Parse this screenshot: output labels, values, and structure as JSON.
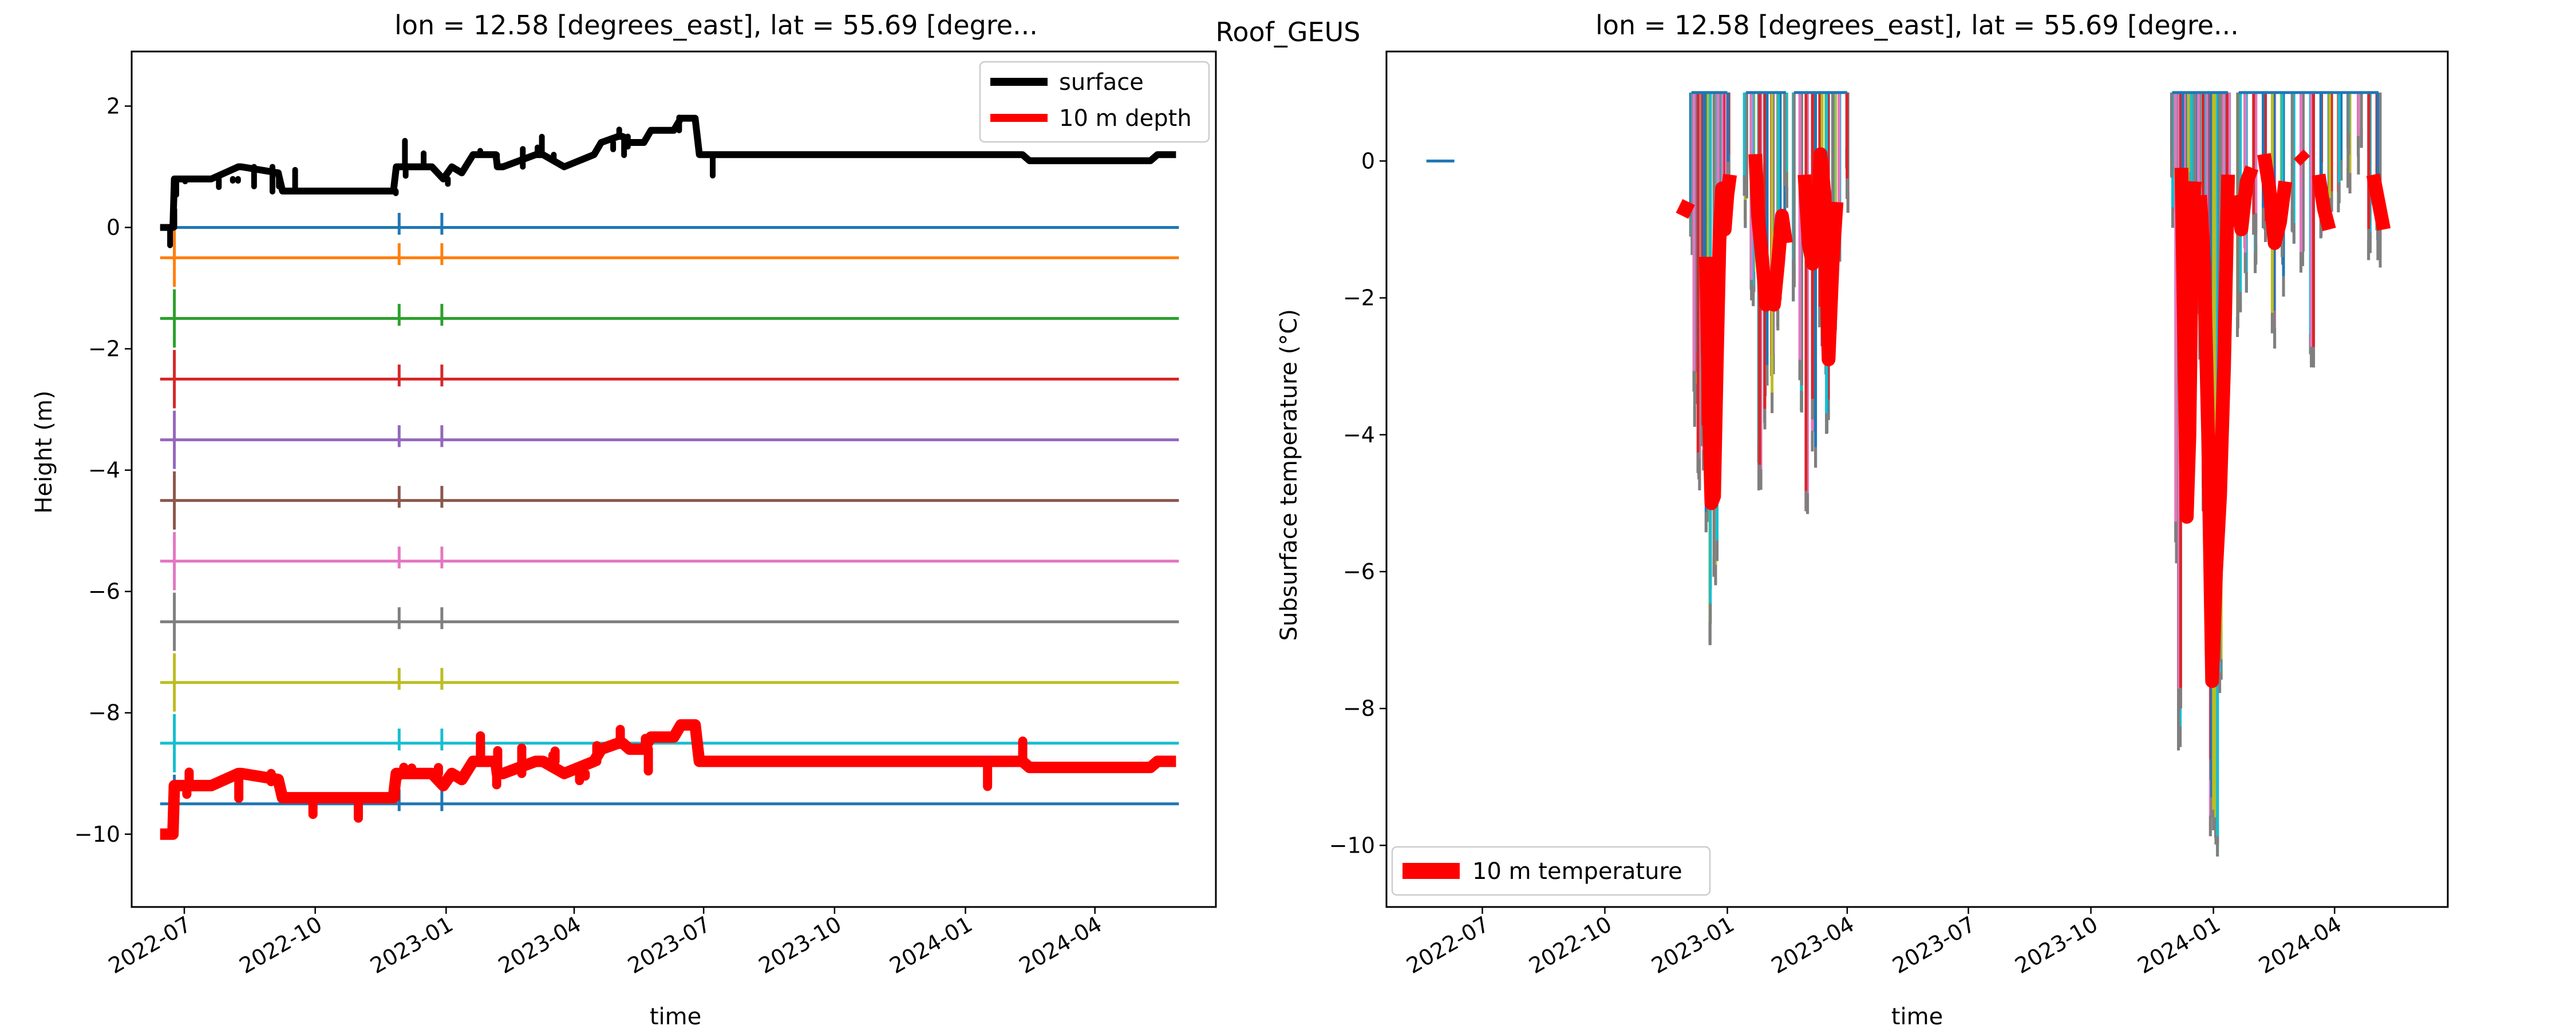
{
  "figure": {
    "suptitle": "Roof_GEUS"
  },
  "chart_data": [
    {
      "type": "line",
      "title": "lon = 12.58 [degrees_east], lat = 55.69 [degre...",
      "xlabel": "time",
      "ylabel": "Height (m)",
      "xlim": [
        "2022-05-25",
        "2024-06-25"
      ],
      "ylim": [
        -11.2,
        2.9
      ],
      "x_tick_labels": [
        "2022-07",
        "2022-10",
        "2023-01",
        "2023-04",
        "2023-07",
        "2023-10",
        "2024-01",
        "2024-04"
      ],
      "y_ticks": [
        2,
        0,
        -2,
        -4,
        -6,
        -8,
        -10
      ],
      "y_tick_labels": [
        "2",
        "0",
        "−2",
        "−4",
        "−6",
        "−8",
        "−10"
      ],
      "legend": {
        "placement": "upper right",
        "entries": [
          {
            "label": "surface",
            "color": "#000000"
          },
          {
            "label": "10 m depth",
            "color": "#ff0000"
          }
        ]
      },
      "depth_levels": [
        {
          "y": 0.0,
          "color": "#1f77b4"
        },
        {
          "y": -0.5,
          "color": "#ff7f0e"
        },
        {
          "y": -1.5,
          "color": "#2ca02c"
        },
        {
          "y": -2.5,
          "color": "#d62728"
        },
        {
          "y": -3.5,
          "color": "#9467bd"
        },
        {
          "y": -4.5,
          "color": "#8c564b"
        },
        {
          "y": -5.5,
          "color": "#e377c2"
        },
        {
          "y": -6.5,
          "color": "#7f7f7f"
        },
        {
          "y": -7.5,
          "color": "#bcbd22"
        },
        {
          "y": -8.5,
          "color": "#17becf"
        },
        {
          "y": -9.5,
          "color": "#1f77b4"
        }
      ],
      "depth_line_start": "2022-06-14",
      "depth_line_end": "2024-05-30",
      "spike_dates": [
        "2022-06-24",
        "2022-11-29",
        "2022-12-29"
      ],
      "series": [
        {
          "name": "surface",
          "color": "#000000",
          "x": [
            "2022-06-14",
            "2022-06-23",
            "2022-06-24",
            "2022-06-26",
            "2022-07-20",
            "2022-08-08",
            "2022-08-10",
            "2022-09-05",
            "2022-09-08",
            "2022-09-12",
            "2022-11-25",
            "2022-11-27",
            "2022-11-30",
            "2022-12-05",
            "2022-12-22",
            "2022-12-30",
            "2023-01-05",
            "2023-01-12",
            "2023-01-20",
            "2023-02-05",
            "2023-02-06",
            "2023-02-10",
            "2023-03-05",
            "2023-03-10",
            "2023-03-25",
            "2023-04-15",
            "2023-04-20",
            "2023-05-02",
            "2023-05-05",
            "2023-05-10",
            "2023-05-20",
            "2023-05-25",
            "2023-06-10",
            "2023-06-15",
            "2023-06-25",
            "2023-06-28",
            "2023-07-15",
            "2024-01-15",
            "2024-02-10",
            "2024-02-15",
            "2024-05-10",
            "2024-05-15",
            "2024-05-28"
          ],
          "y": [
            0.0,
            0.0,
            0.8,
            0.8,
            0.8,
            1.0,
            1.0,
            0.9,
            0.6,
            0.6,
            0.6,
            1.0,
            1.0,
            1.0,
            1.0,
            0.8,
            1.0,
            0.9,
            1.2,
            1.2,
            1.0,
            1.0,
            1.2,
            1.2,
            1.0,
            1.2,
            1.4,
            1.5,
            1.5,
            1.4,
            1.4,
            1.6,
            1.6,
            1.8,
            1.8,
            1.2,
            1.2,
            1.2,
            1.2,
            1.1,
            1.1,
            1.2,
            1.2
          ]
        },
        {
          "name": "10 m depth",
          "color": "#ff0000",
          "x": [
            "2022-06-14",
            "2022-06-23",
            "2022-06-24",
            "2022-06-26",
            "2022-07-20",
            "2022-08-08",
            "2022-08-10",
            "2022-09-05",
            "2022-09-08",
            "2022-09-12",
            "2022-11-25",
            "2022-11-27",
            "2022-11-30",
            "2022-12-05",
            "2022-12-22",
            "2022-12-30",
            "2023-01-05",
            "2023-01-12",
            "2023-01-20",
            "2023-02-05",
            "2023-02-06",
            "2023-02-10",
            "2023-03-05",
            "2023-03-10",
            "2023-03-25",
            "2023-04-15",
            "2023-04-20",
            "2023-05-02",
            "2023-05-05",
            "2023-05-10",
            "2023-05-20",
            "2023-05-25",
            "2023-06-10",
            "2023-06-15",
            "2023-06-25",
            "2023-06-28",
            "2023-07-15",
            "2024-01-15",
            "2024-02-10",
            "2024-02-15",
            "2024-05-10",
            "2024-05-15",
            "2024-05-28"
          ],
          "y": [
            -10.0,
            -10.0,
            -9.2,
            -9.2,
            -9.2,
            -9.0,
            -9.0,
            -9.1,
            -9.4,
            -9.4,
            -9.4,
            -9.0,
            -9.0,
            -9.0,
            -9.0,
            -9.2,
            -9.0,
            -9.1,
            -8.8,
            -8.8,
            -9.0,
            -9.0,
            -8.8,
            -8.8,
            -9.0,
            -8.8,
            -8.6,
            -8.5,
            -8.5,
            -8.6,
            -8.6,
            -8.4,
            -8.4,
            -8.2,
            -8.2,
            -8.8,
            -8.8,
            -8.8,
            -8.8,
            -8.9,
            -8.9,
            -8.8,
            -8.8
          ]
        }
      ]
    },
    {
      "type": "line",
      "title": "lon = 12.58 [degrees_east], lat = 55.69 [degre...",
      "xlabel": "time",
      "ylabel": "Subsurface temperature (°C)",
      "xlim": [
        "2022-04-20",
        "2024-06-25"
      ],
      "ylim": [
        -10.9,
        1.6
      ],
      "x_tick_labels": [
        "2022-07",
        "2022-10",
        "2023-01",
        "2023-04",
        "2023-07",
        "2023-10",
        "2024-01",
        "2024-04"
      ],
      "y_ticks": [
        0,
        -2,
        -4,
        -6,
        -8,
        -10
      ],
      "y_tick_labels": [
        "0",
        "−2",
        "−4",
        "−6",
        "−8",
        "−10"
      ],
      "legend": {
        "placement": "lower left",
        "entries": [
          {
            "label": "10 m temperature",
            "color": "#ff0000"
          }
        ]
      },
      "early_segment": {
        "x": [
          "2022-05-20",
          "2022-06-10"
        ],
        "y": 0.0,
        "color": "#1f77b4"
      },
      "depth_series_colors": [
        "#1f77b4",
        "#bcbd22",
        "#17becf",
        "#7f7f7f",
        "#e377c2",
        "#d62728"
      ],
      "warm_bursts": [
        {
          "x": [
            "2022-12-05",
            "2022-12-08",
            "2022-12-11",
            "2022-12-14",
            "2022-12-17",
            "2022-12-20",
            "2022-12-23",
            "2022-12-26",
            "2022-12-29",
            "2023-01-01"
          ],
          "ymin": [
            -1.5,
            -3.9,
            -5.0,
            -4.6,
            -5.6,
            -7.1,
            -6.2,
            -3.0,
            -1.8,
            -0.8
          ]
        },
        {
          "x": [
            "2023-01-15",
            "2023-01-20",
            "2023-01-25",
            "2023-01-30",
            "2023-02-04",
            "2023-02-09",
            "2023-02-14"
          ],
          "ymin": [
            -1.2,
            -2.3,
            -5.0,
            -4.1,
            -3.8,
            -2.5,
            -1.2
          ]
        },
        {
          "x": [
            "2023-02-20",
            "2023-02-25",
            "2023-03-02",
            "2023-03-07",
            "2023-03-12",
            "2023-03-17",
            "2023-03-22",
            "2023-03-27",
            "2023-04-01"
          ],
          "ymin": [
            -2.1,
            -4.1,
            -5.2,
            -4.6,
            -3.0,
            -4.0,
            -2.6,
            -1.5,
            -1.0
          ]
        },
        {
          "x": [
            "2023-12-01",
            "2023-12-04",
            "2023-12-07",
            "2023-12-10",
            "2023-12-13",
            "2023-12-16",
            "2023-12-19",
            "2023-12-22",
            "2023-12-25",
            "2023-12-28",
            "2023-12-31",
            "2024-01-03",
            "2024-01-06",
            "2024-01-09",
            "2024-01-12"
          ],
          "ymin": [
            -1.0,
            -6.2,
            -8.8,
            -5.0,
            -2.0,
            -1.3,
            -2.5,
            -3.0,
            -5.5,
            -7.5,
            -9.9,
            -10.3,
            -8.0,
            -5.0,
            -3.0
          ]
        },
        {
          "x": [
            "2024-01-20",
            "2024-01-25",
            "2024-02-01",
            "2024-02-08",
            "2024-02-15",
            "2024-02-22",
            "2024-03-01",
            "2024-03-08",
            "2024-03-15",
            "2024-03-22",
            "2024-03-29",
            "2024-04-05",
            "2024-04-12",
            "2024-04-20",
            "2024-04-27",
            "2024-05-04"
          ],
          "ymin": [
            -2.8,
            -2.0,
            -1.7,
            -1.5,
            -2.9,
            -2.0,
            -1.3,
            -1.7,
            -3.1,
            -1.2,
            -1.0,
            -0.9,
            -0.5,
            -0.3,
            -1.5,
            -1.6
          ]
        }
      ],
      "series": [
        {
          "name": "10 m temperature",
          "color": "#ff0000",
          "segments": [
            {
              "x": [
                "2022-11-28",
                "2022-12-03"
              ],
              "y": [
                -0.8,
                -0.6
              ]
            },
            {
              "x": [
                "2022-12-16",
                "2022-12-18",
                "2022-12-20",
                "2022-12-22",
                "2022-12-24",
                "2022-12-26",
                "2022-12-28",
                "2022-12-30",
                "2023-01-01",
                "2023-01-03"
              ],
              "y": [
                -1.4,
                -3.5,
                -5.0,
                -4.9,
                -3.0,
                -1.2,
                -0.4,
                -1.0,
                -0.5,
                -0.2
              ]
            },
            {
              "x": [
                "2023-01-22",
                "2023-01-24",
                "2023-01-27",
                "2023-01-30",
                "2023-02-02",
                "2023-02-05",
                "2023-02-08",
                "2023-02-11",
                "2023-02-14"
              ],
              "y": [
                0.1,
                -0.8,
                -1.4,
                -2.1,
                -1.8,
                -2.1,
                -1.5,
                -0.8,
                -1.2
              ]
            },
            {
              "x": [
                "2023-02-28",
                "2023-03-03",
                "2023-03-06",
                "2023-03-09",
                "2023-03-12",
                "2023-03-15",
                "2023-03-18",
                "2023-03-21",
                "2023-03-24"
              ],
              "y": [
                -0.2,
                -1.2,
                -1.5,
                -1.1,
                0.1,
                -0.5,
                -2.9,
                -1.5,
                -0.6
              ]
            },
            {
              "x": [
                "2023-12-08",
                "2023-12-10",
                "2023-12-12",
                "2023-12-14",
                "2023-12-16",
                "2023-12-18"
              ],
              "y": [
                -0.1,
                -2.6,
                -5.2,
                -4.0,
                -1.0,
                -0.3
              ]
            },
            {
              "x": [
                "2023-12-22",
                "2023-12-25",
                "2023-12-28",
                "2023-12-31",
                "2024-01-03",
                "2024-01-06",
                "2024-01-09",
                "2024-01-12"
              ],
              "y": [
                -0.5,
                -1.5,
                -4.0,
                -7.6,
                -6.0,
                -4.9,
                -3.0,
                -0.2
              ]
            },
            {
              "x": [
                "2024-01-18",
                "2024-01-22",
                "2024-01-26",
                "2024-01-30"
              ],
              "y": [
                -0.5,
                -1.0,
                -0.3,
                -0.1
              ]
            },
            {
              "x": [
                "2024-02-08",
                "2024-02-12",
                "2024-02-16",
                "2024-02-20",
                "2024-02-24"
              ],
              "y": [
                0.1,
                -0.4,
                -1.2,
                -0.9,
                -0.3
              ]
            },
            {
              "x": [
                "2024-03-05",
                "2024-03-10"
              ],
              "y": [
                0.1,
                0.0
              ]
            },
            {
              "x": [
                "2024-03-20",
                "2024-03-24",
                "2024-03-28"
              ],
              "y": [
                -0.2,
                -0.7,
                -1.0
              ]
            },
            {
              "x": [
                "2024-04-30",
                "2024-05-04",
                "2024-05-08"
              ],
              "y": [
                -0.2,
                -0.6,
                -1.0
              ]
            }
          ]
        }
      ]
    }
  ]
}
